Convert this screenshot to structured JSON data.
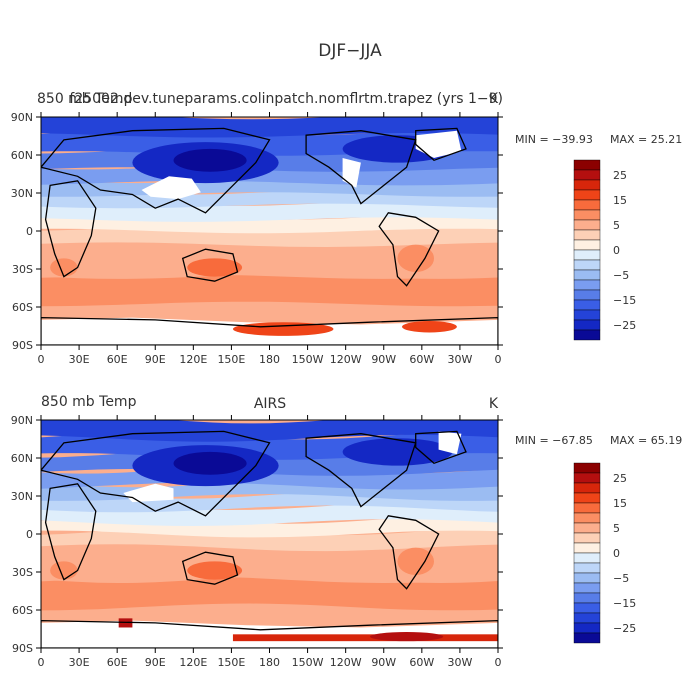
{
  "figure": {
    "title": "DJF−JJA"
  },
  "panels": [
    {
      "left_title": "850 mb Temp",
      "center_title": "f25002.dev.tuneparams.colinpatch.nomflrtm.trapez (yrs 1−9)",
      "units": "K",
      "min_label": "MIN = −39.93",
      "max_label": "MAX =  25.21",
      "min_value": -39.93,
      "max_value": 25.21
    },
    {
      "left_title": "850 mb Temp",
      "center_title": "AIRS",
      "units": "K",
      "min_label": "MIN = −67.85",
      "max_label": "MAX =  65.19",
      "min_value": -67.85,
      "max_value": 65.19
    }
  ],
  "axes": {
    "lon_ticks": [
      "0",
      "30E",
      "60E",
      "90E",
      "120E",
      "150E",
      "180",
      "150W",
      "120W",
      "90W",
      "60W",
      "30W",
      "0"
    ],
    "lat_ticks": [
      "90N",
      "60N",
      "30N",
      "0",
      "30S",
      "60S",
      "90S"
    ]
  },
  "colorbar": {
    "tick_labels": [
      "25",
      "15",
      "5",
      "0",
      "−5",
      "−15",
      "−25"
    ],
    "colors": [
      "#8b0000",
      "#b40f0f",
      "#d7260b",
      "#ef4418",
      "#f86b3c",
      "#fb8e63",
      "#fcae8d",
      "#fdd0b6",
      "#fef0e2",
      "#dfeefb",
      "#bdd6f8",
      "#9bbcf2",
      "#7a9df0",
      "#587de8",
      "#3a5ee6",
      "#2443d8",
      "#1428c4",
      "#0a0a96"
    ]
  },
  "colors": {
    "text": "#333333",
    "coast": "#000000",
    "missing": "#ffffff"
  }
}
